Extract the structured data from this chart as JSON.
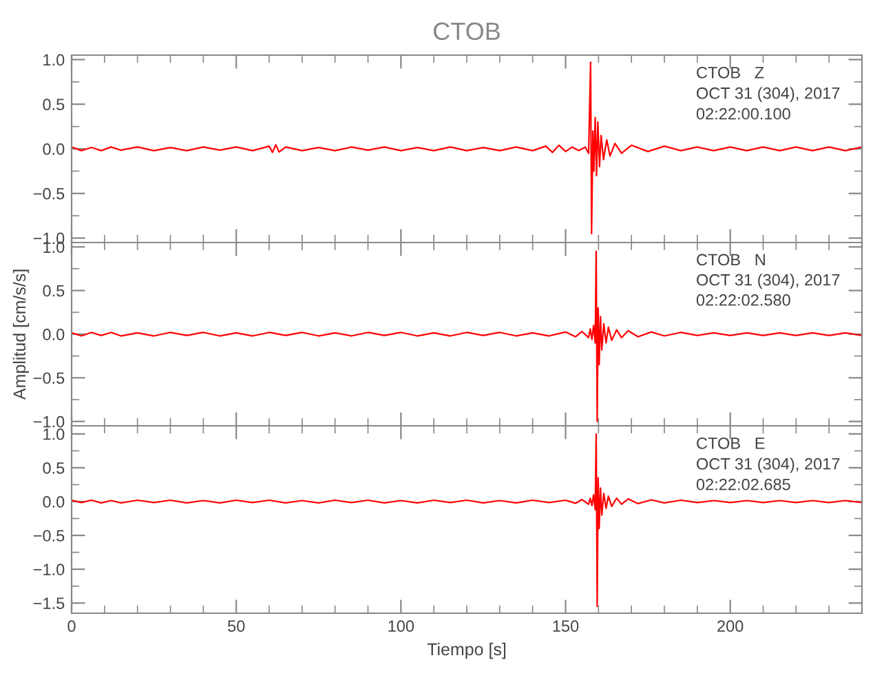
{
  "chart_data": [
    {
      "type": "line",
      "title": "CTOB",
      "annotations": [
        "CTOB   Z",
        "OCT 31 (304), 2017",
        "02:22:00.100"
      ],
      "tick_labels": "y",
      "grid": false,
      "xlim": [
        0,
        240
      ],
      "ylim": [
        -1.05,
        1.05
      ],
      "yticks": [
        {
          "value": -1.0,
          "label": "−1.0"
        },
        {
          "value": -0.5,
          "label": "−0.5"
        },
        {
          "value": 0,
          "label": "0.0"
        },
        {
          "value": 0.5,
          "label": "0.5"
        },
        {
          "value": 1.0,
          "label": "1.0"
        }
      ],
      "series": [
        {
          "color": "#ff0000",
          "x": [
            0,
            3,
            6,
            9,
            12,
            15,
            20,
            25,
            30,
            35,
            40,
            45,
            50,
            55,
            60,
            61,
            62,
            63,
            65,
            70,
            75,
            80,
            85,
            90,
            95,
            100,
            105,
            110,
            115,
            120,
            125,
            130,
            135,
            140,
            144,
            146,
            148,
            150,
            152,
            154,
            156,
            157,
            157.6,
            157.9,
            158.3,
            158.6,
            159,
            159.4,
            159.8,
            160.3,
            160.8,
            161.5,
            162.5,
            163.5,
            165,
            167,
            170,
            175,
            180,
            185,
            190,
            195,
            200,
            205,
            210,
            215,
            220,
            225,
            230,
            235,
            240
          ],
          "values": [
            0.02,
            -0.02,
            0.015,
            -0.02,
            0.02,
            -0.015,
            0.02,
            -0.02,
            0.015,
            -0.02,
            0.02,
            -0.015,
            0.02,
            -0.02,
            0.03,
            -0.04,
            0.045,
            -0.035,
            0.02,
            -0.02,
            0.015,
            -0.02,
            0.02,
            -0.015,
            0.02,
            -0.02,
            0.015,
            -0.02,
            0.02,
            -0.02,
            0.015,
            -0.02,
            0.02,
            -0.02,
            0.03,
            -0.04,
            0.04,
            -0.03,
            0.02,
            -0.02,
            0.02,
            -0.05,
            0.97,
            -0.95,
            0.2,
            -0.25,
            0.35,
            -0.3,
            0.3,
            -0.2,
            0.15,
            -0.12,
            0.1,
            -0.08,
            0.06,
            -0.05,
            0.04,
            -0.03,
            0.03,
            -0.02,
            0.02,
            -0.02,
            0.02,
            -0.02,
            0.02,
            -0.02,
            0.02,
            -0.02,
            0.02,
            -0.02,
            0.02
          ]
        }
      ]
    },
    {
      "type": "line",
      "ylabel": "Amplitud [cm/s/s]",
      "annotations": [
        "CTOB   N",
        "OCT 31 (304), 2017",
        "02:22:02.580"
      ],
      "tick_labels": "y",
      "grid": false,
      "xlim": [
        0,
        240
      ],
      "ylim": [
        -1.05,
        1.05
      ],
      "yticks": [
        {
          "value": -1.0,
          "label": "−1.0"
        },
        {
          "value": -0.5,
          "label": "−0.5"
        },
        {
          "value": 0,
          "label": "0.0"
        },
        {
          "value": 0.5,
          "label": "0.5"
        },
        {
          "value": 1.0,
          "label": "1.0"
        }
      ],
      "series": [
        {
          "color": "#ff0000",
          "x": [
            0,
            3,
            6,
            9,
            12,
            15,
            20,
            25,
            30,
            35,
            40,
            45,
            50,
            55,
            60,
            65,
            70,
            75,
            80,
            85,
            90,
            95,
            100,
            105,
            110,
            115,
            120,
            125,
            130,
            135,
            140,
            145,
            150,
            153,
            155,
            157,
            157.5,
            158,
            158.5,
            159.0,
            159.3,
            159.6,
            159.9,
            160.2,
            160.6,
            161,
            161.6,
            162.3,
            163,
            164,
            165.5,
            167,
            169,
            172,
            176,
            180,
            185,
            190,
            195,
            200,
            205,
            210,
            215,
            220,
            225,
            230,
            235,
            240
          ],
          "values": [
            0.015,
            -0.02,
            0.02,
            -0.015,
            0.02,
            -0.02,
            0.015,
            -0.02,
            0.02,
            -0.015,
            0.02,
            -0.02,
            0.015,
            -0.02,
            0.02,
            -0.015,
            0.02,
            -0.02,
            0.015,
            -0.02,
            0.02,
            -0.015,
            0.02,
            -0.02,
            0.015,
            -0.02,
            0.02,
            -0.015,
            0.02,
            -0.02,
            0.015,
            -0.02,
            0.025,
            -0.03,
            0.03,
            -0.04,
            0.06,
            -0.06,
            0.1,
            -0.1,
            0.95,
            -1.0,
            0.3,
            -0.35,
            0.2,
            -0.18,
            0.12,
            -0.1,
            0.08,
            -0.07,
            0.05,
            -0.04,
            0.04,
            -0.03,
            0.025,
            -0.02,
            0.02,
            -0.015,
            0.015,
            -0.015,
            0.015,
            -0.015,
            0.015,
            -0.015,
            0.015,
            -0.015,
            0.015,
            -0.015
          ]
        }
      ]
    },
    {
      "type": "line",
      "xlabel": "Tiempo [s]",
      "annotations": [
        "CTOB   E",
        "OCT 31 (304), 2017",
        "02:22:02.685"
      ],
      "grid": false,
      "xlim": [
        0,
        240
      ],
      "ylim": [
        -1.65,
        1.12
      ],
      "xticks": [
        0,
        50,
        100,
        150,
        200
      ],
      "yticks": [
        {
          "value": -1.5,
          "label": "−1.5"
        },
        {
          "value": -1.0,
          "label": "−1.0"
        },
        {
          "value": -0.5,
          "label": "−0.5"
        },
        {
          "value": 0,
          "label": "0.0"
        },
        {
          "value": 0.5,
          "label": "0.5"
        },
        {
          "value": 1.0,
          "label": "1.0"
        }
      ],
      "series": [
        {
          "color": "#ff0000",
          "x": [
            0,
            3,
            6,
            9,
            12,
            15,
            20,
            25,
            30,
            35,
            40,
            45,
            50,
            55,
            60,
            65,
            70,
            75,
            80,
            85,
            90,
            95,
            100,
            105,
            110,
            115,
            120,
            125,
            130,
            135,
            140,
            145,
            150,
            153,
            155,
            157,
            157.5,
            158,
            158.5,
            159.0,
            159.3,
            159.6,
            159.9,
            160.2,
            160.6,
            161,
            161.6,
            162.3,
            163,
            164,
            165.5,
            167,
            169,
            172,
            176,
            180,
            185,
            190,
            195,
            200,
            205,
            210,
            215,
            220,
            225,
            230,
            235,
            240
          ],
          "values": [
            0.02,
            -0.015,
            0.02,
            -0.02,
            0.015,
            -0.02,
            0.02,
            -0.015,
            0.02,
            -0.02,
            0.015,
            -0.02,
            0.02,
            -0.015,
            0.02,
            -0.02,
            0.015,
            -0.02,
            0.02,
            -0.015,
            0.02,
            -0.02,
            0.015,
            -0.02,
            0.02,
            -0.015,
            0.02,
            -0.02,
            0.015,
            -0.02,
            0.02,
            -0.015,
            0.02,
            -0.025,
            0.03,
            -0.04,
            0.05,
            -0.06,
            0.1,
            -0.12,
            1.0,
            -1.55,
            0.35,
            -0.4,
            0.2,
            -0.2,
            0.12,
            -0.1,
            0.08,
            -0.07,
            0.05,
            -0.04,
            0.04,
            -0.03,
            0.025,
            -0.02,
            0.02,
            -0.015,
            0.015,
            -0.015,
            0.015,
            -0.015,
            0.015,
            -0.015,
            0.015,
            -0.015,
            0.015,
            -0.015
          ]
        }
      ]
    }
  ]
}
